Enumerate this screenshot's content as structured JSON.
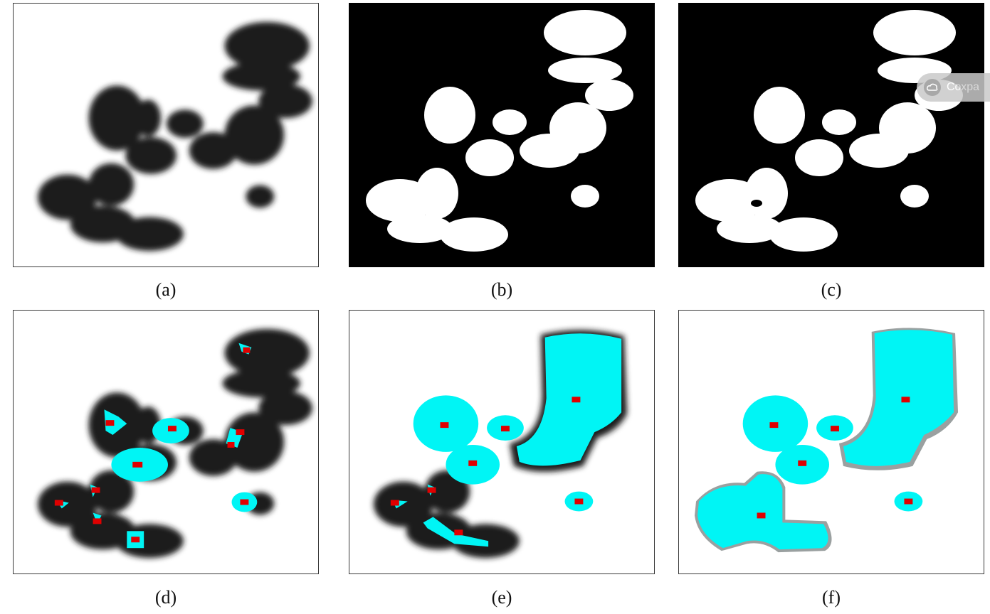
{
  "captions": {
    "a": "(a)",
    "b": "(b)",
    "c": "(c)",
    "d": "(d)",
    "e": "(e)",
    "f": "(f)"
  },
  "overlay": {
    "save_label": "Сохра",
    "icon": "cloud-save-icon"
  },
  "colors": {
    "cell": "#1a1a1a",
    "mask": "#ffffff",
    "segment": "#00f5f5",
    "marker": "#e00000",
    "background": "#000000"
  }
}
